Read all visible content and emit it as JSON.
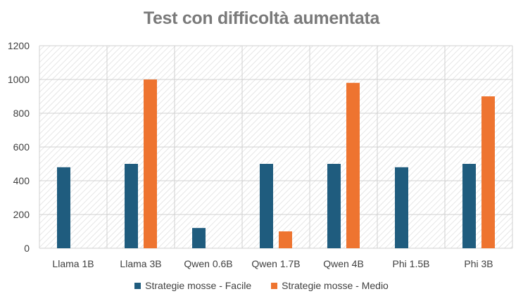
{
  "chart_data": {
    "type": "bar",
    "title": "Test con difficoltà aumentata",
    "categories": [
      "Llama 1B",
      "Llama 3B",
      "Qwen 0.6B",
      "Qwen 1.7B",
      "Qwen 4B",
      "Phi 1.5B",
      "Phi 3B"
    ],
    "series": [
      {
        "name": "Strategie mosse - Facile",
        "color": "#1f5c7e",
        "values": [
          480,
          500,
          120,
          500,
          500,
          480,
          500
        ]
      },
      {
        "name": "Strategie mosse - Medio",
        "color": "#ee7430",
        "values": [
          0,
          1000,
          0,
          100,
          980,
          0,
          900
        ]
      }
    ],
    "yticks": [
      "0",
      "200",
      "400",
      "600",
      "800",
      "1000",
      "1200"
    ],
    "ylim": [
      0,
      1200
    ],
    "grid": true,
    "legend_position": "bottom",
    "xlabel": "",
    "ylabel": ""
  }
}
